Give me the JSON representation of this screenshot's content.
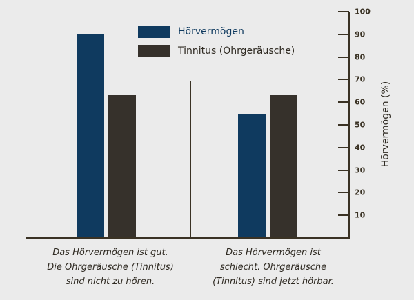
{
  "chart_data": {
    "type": "bar",
    "title": "",
    "xlabel": "",
    "ylabel": "Hörvermögen (%)",
    "ylim": [
      0,
      100
    ],
    "yticks": [
      10,
      20,
      30,
      40,
      50,
      60,
      70,
      80,
      90,
      100
    ],
    "grid": false,
    "legend_position": "top-center",
    "categories": [
      "Das Hörvermögen ist gut. Die Ohrgeräusche (Tinnitus) sind nicht zu hören.",
      "Das Hörvermögen ist schlecht. Ohrgeräusche (Tinnitus) sind jetzt hörbar."
    ],
    "series": [
      {
        "name": "Hörvermögen",
        "color": "#0f3a5f",
        "values": [
          90,
          55
        ]
      },
      {
        "name": "Tinnitus (Ohrgeräusche)",
        "color": "#36312b",
        "values": [
          63,
          63
        ]
      }
    ]
  },
  "legend": {
    "items": [
      {
        "label": "Hörvermögen",
        "color": "#0f3a5f",
        "text_color": "#0f3a5f"
      },
      {
        "label": "Tinnitus (Ohrgeräusche)",
        "color": "#36312b",
        "text_color": "#2f2a22"
      }
    ]
  },
  "axis": {
    "ylabel": "Hörvermögen (%)",
    "ticks": [
      "100",
      "90",
      "80",
      "70",
      "60",
      "50",
      "40",
      "30",
      "20",
      "10"
    ]
  },
  "captions": {
    "left": [
      "Das Hörvermögen ist gut.",
      "Die Ohrgeräusche (Tinnitus)",
      "sind nicht zu hören."
    ],
    "right": [
      "Das Hörvermögen ist",
      "schlecht. Ohrgeräusche",
      "(Tinnitus) sind jetzt hörbar."
    ]
  },
  "colors": {
    "background": "#ebebeb",
    "hearing": "#0f3a5f",
    "tinnitus": "#36312b",
    "axis": "#3a3224"
  }
}
